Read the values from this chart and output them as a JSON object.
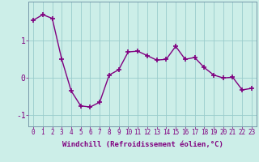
{
  "x": [
    0,
    1,
    2,
    3,
    4,
    5,
    6,
    7,
    8,
    9,
    10,
    11,
    12,
    13,
    14,
    15,
    16,
    17,
    18,
    19,
    20,
    21,
    22,
    23
  ],
  "y": [
    1.55,
    1.7,
    1.6,
    0.5,
    -0.35,
    -0.75,
    -0.78,
    -0.65,
    0.08,
    0.22,
    0.7,
    0.72,
    0.6,
    0.48,
    0.5,
    0.85,
    0.5,
    0.55,
    0.28,
    0.08,
    0.0,
    0.02,
    -0.32,
    -0.28
  ],
  "line_color": "#800080",
  "marker": "+",
  "marker_size": 5,
  "marker_linewidth": 1.2,
  "line_width": 1.0,
  "bg_color": "#cceee8",
  "grid_color": "#99cccc",
  "xlabel": "Windchill (Refroidissement éolien,°C)",
  "xlabel_fontsize": 6.5,
  "tick_fontsize": 5.5,
  "ylabel_ticks": [
    -1,
    0,
    1
  ],
  "ylim": [
    -1.3,
    2.05
  ],
  "xlim": [
    -0.5,
    23.5
  ]
}
